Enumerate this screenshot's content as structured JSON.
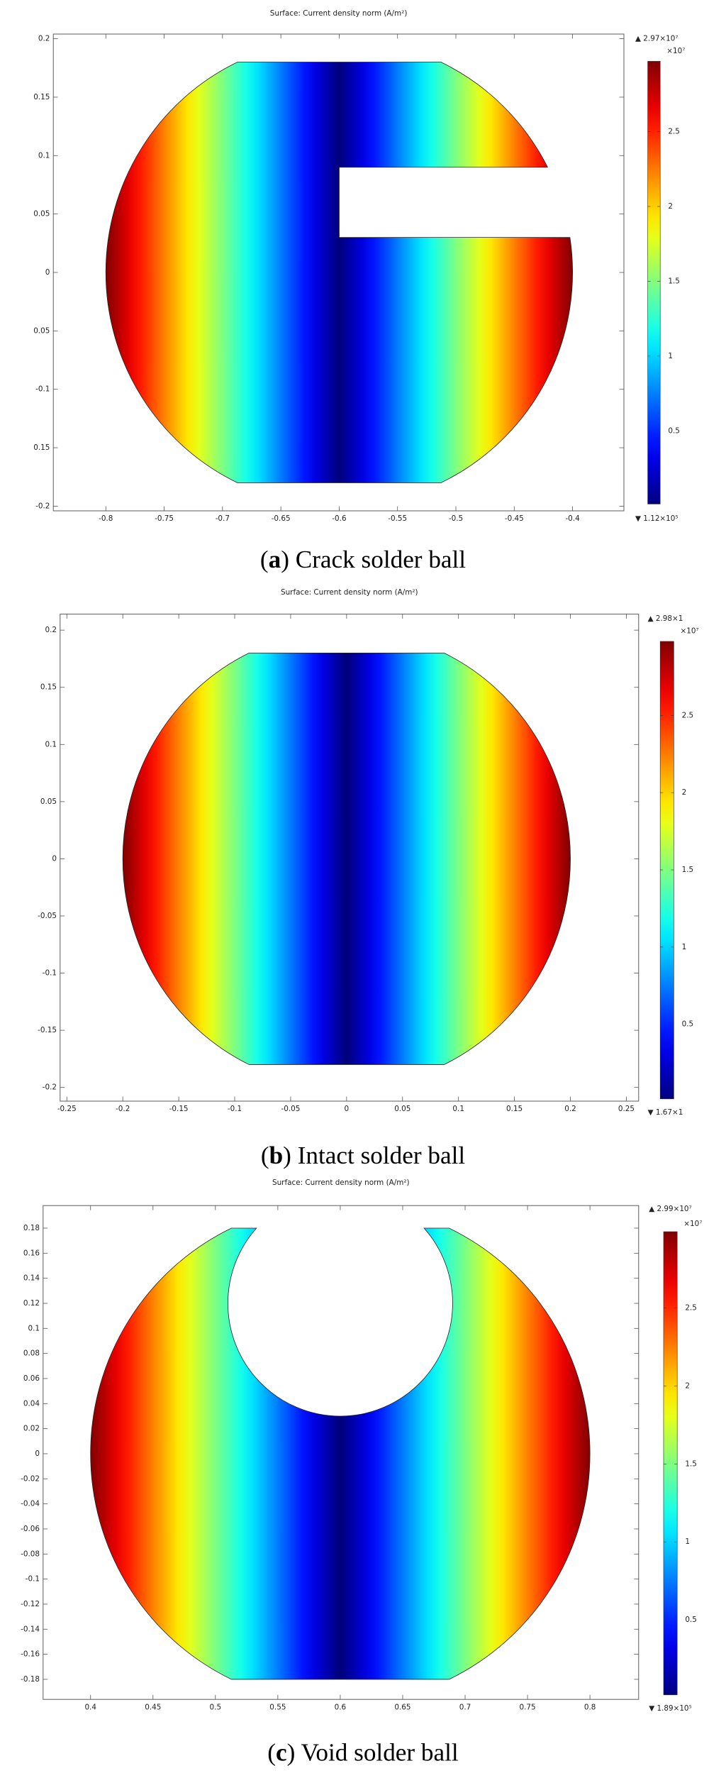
{
  "chart_data": [
    {
      "type": "surface",
      "title": "Surface: Current density norm (A/m²)",
      "caption_parts": [
        "(",
        "a",
        ") Crack solder ball"
      ],
      "xlim": [
        -0.845,
        -0.356
      ],
      "ylim": [
        -0.204,
        0.204
      ],
      "xticks": [
        -0.8,
        -0.75,
        -0.7,
        -0.65,
        -0.6,
        -0.55,
        -0.5,
        -0.45,
        -0.4
      ],
      "yticks": [
        -0.2,
        {
          "value": -0.15,
          "label": "0.15"
        },
        -0.1,
        {
          "value": -0.05,
          "label": "0.05"
        },
        0,
        0.05,
        0.1,
        0.15,
        0.2
      ],
      "domain": {
        "center": [
          -0.6,
          0
        ],
        "radius": 0.2,
        "flat_y": 0.18,
        "crack": {
          "x": -0.6,
          "y": [
            0.03,
            0.09
          ]
        }
      },
      "colorbar": {
        "max": {
          "value": 2.97,
          "label": "▲ 2.97×10⁷"
        },
        "min": {
          "value": 0.0112,
          "label": "▼ 1.12×10⁵"
        },
        "multiplier": "×10⁷",
        "ticks": [
          0.5,
          1,
          1.5,
          2,
          2.5
        ]
      }
    },
    {
      "type": "surface",
      "title": "Surface: Current density norm (A/m²)",
      "caption_parts": [
        "(",
        "b",
        ") Intact solder ball"
      ],
      "xlim": [
        -0.256,
        0.261
      ],
      "ylim": [
        -0.212,
        0.214
      ],
      "xticks": [
        -0.25,
        -0.2,
        -0.15,
        -0.1,
        -0.05,
        0,
        0.05,
        0.1,
        0.15,
        0.2,
        0.25
      ],
      "yticks": [
        -0.2,
        -0.15,
        -0.1,
        -0.05,
        0,
        0.05,
        0.1,
        0.15,
        0.2
      ],
      "domain": {
        "center": [
          0,
          0
        ],
        "radius": 0.2,
        "flat_y": 0.18
      },
      "colorbar": {
        "max": {
          "value": 2.98,
          "label": "▲ 2.98×1"
        },
        "min": {
          "value": 0.0167,
          "label": "▼ 1.67×1"
        },
        "multiplier": "×10⁷",
        "ticks": [
          0.5,
          1,
          1.5,
          2,
          2.5
        ]
      }
    },
    {
      "type": "surface",
      "title": "Surface: Current density norm (A/m²)",
      "caption_parts": [
        "(",
        "c",
        ") Void solder ball"
      ],
      "xlim": [
        0.362,
        0.839
      ],
      "ylim": [
        -0.196,
        0.198
      ],
      "xticks": [
        0.4,
        0.45,
        0.5,
        0.55,
        0.6,
        0.65,
        0.7,
        0.75,
        0.8
      ],
      "yticks": [
        -0.18,
        -0.16,
        -0.14,
        -0.12,
        -0.1,
        -0.08,
        -0.06,
        -0.04,
        -0.02,
        0,
        0.02,
        0.04,
        0.06,
        0.08,
        0.1,
        0.12,
        0.14,
        0.16,
        0.18
      ],
      "domain": {
        "center": [
          0.6,
          0
        ],
        "radius": 0.2,
        "flat_y": 0.18,
        "void": {
          "center": [
            0.6,
            0.12
          ],
          "radius": 0.09
        }
      },
      "colorbar": {
        "max": {
          "value": 2.99,
          "label": "▲ 2.99×10⁷"
        },
        "min": {
          "value": 0.0189,
          "label": "▼ 1.89×10⁵"
        },
        "multiplier": "×10⁷",
        "ticks": [
          0.5,
          1,
          1.5,
          2,
          2.5
        ]
      }
    }
  ]
}
